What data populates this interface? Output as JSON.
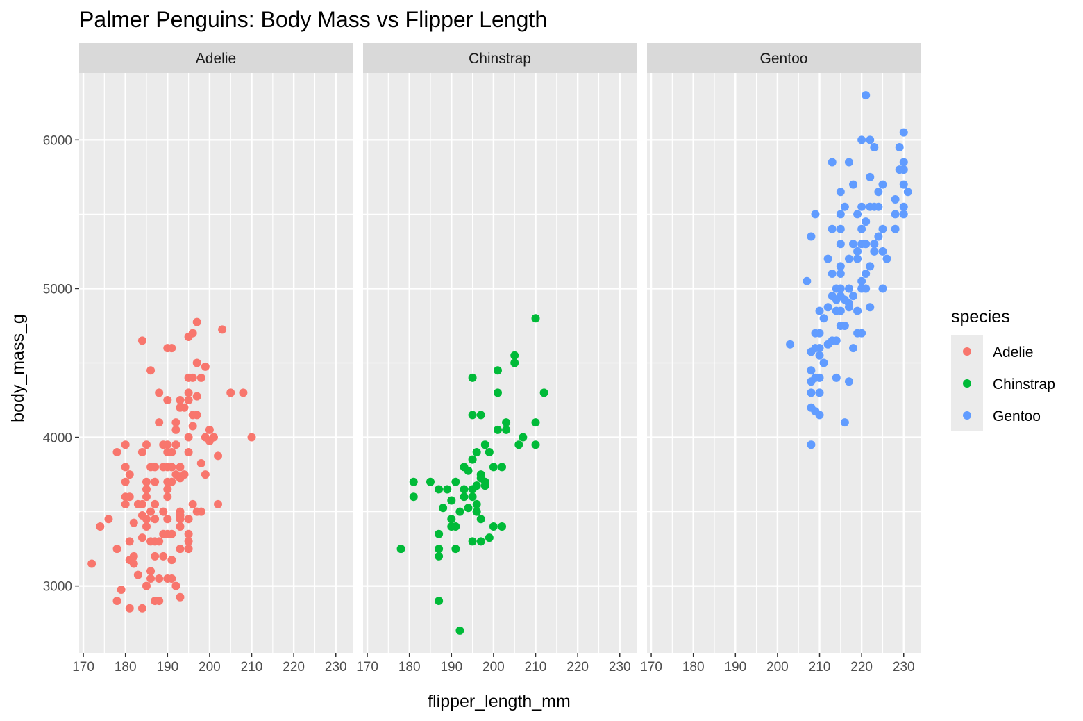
{
  "chart_data": {
    "type": "scatter",
    "title": "Palmer Penguins: Body Mass vs Flipper Length",
    "xlabel": "flipper_length_mm",
    "ylabel": "body_mass_g",
    "xlim": [
      169,
      234
    ],
    "ylim": [
      2550,
      6450
    ],
    "xticks": [
      170,
      180,
      190,
      200,
      210,
      220,
      230
    ],
    "yticks": [
      3000,
      4000,
      5000,
      6000
    ],
    "grid": true,
    "legend": {
      "title": "species",
      "position": "right"
    },
    "facets": [
      {
        "name": "Adelie",
        "color": "#F8766D",
        "points": [
          [
            172,
            3150
          ],
          [
            174,
            3400
          ],
          [
            176,
            3450
          ],
          [
            178,
            3900
          ],
          [
            178,
            3250
          ],
          [
            178,
            2900
          ],
          [
            179,
            2975
          ],
          [
            180,
            3950
          ],
          [
            180,
            3800
          ],
          [
            180,
            3700
          ],
          [
            180,
            3600
          ],
          [
            180,
            3550
          ],
          [
            181,
            3750
          ],
          [
            181,
            3600
          ],
          [
            181,
            3300
          ],
          [
            181,
            3175
          ],
          [
            181,
            2850
          ],
          [
            182,
            3150
          ],
          [
            182,
            3200
          ],
          [
            182,
            3425
          ],
          [
            183,
            3550
          ],
          [
            183,
            3075
          ],
          [
            184,
            4650
          ],
          [
            184,
            3900
          ],
          [
            184,
            3550
          ],
          [
            184,
            3475
          ],
          [
            184,
            3325
          ],
          [
            184,
            2850
          ],
          [
            185,
            3950
          ],
          [
            185,
            3700
          ],
          [
            185,
            3650
          ],
          [
            185,
            3600
          ],
          [
            185,
            3450
          ],
          [
            185,
            3400
          ],
          [
            185,
            3000
          ],
          [
            186,
            4450
          ],
          [
            186,
            3800
          ],
          [
            186,
            3500
          ],
          [
            186,
            3300
          ],
          [
            186,
            3100
          ],
          [
            186,
            3050
          ],
          [
            187,
            3800
          ],
          [
            187,
            3700
          ],
          [
            187,
            3550
          ],
          [
            187,
            3450
          ],
          [
            187,
            3300
          ],
          [
            187,
            3200
          ],
          [
            187,
            2900
          ],
          [
            188,
            4300
          ],
          [
            188,
            4100
          ],
          [
            188,
            3300
          ],
          [
            188,
            3050
          ],
          [
            188,
            2900
          ],
          [
            189,
            3950
          ],
          [
            189,
            3800
          ],
          [
            189,
            3500
          ],
          [
            189,
            3350
          ],
          [
            189,
            3200
          ],
          [
            190,
            4600
          ],
          [
            190,
            4250
          ],
          [
            190,
            3950
          ],
          [
            190,
            3900
          ],
          [
            190,
            3800
          ],
          [
            190,
            3700
          ],
          [
            190,
            3650
          ],
          [
            190,
            3600
          ],
          [
            190,
            3450
          ],
          [
            190,
            3350
          ],
          [
            190,
            3050
          ],
          [
            191,
            4600
          ],
          [
            191,
            3900
          ],
          [
            191,
            3800
          ],
          [
            191,
            3700
          ],
          [
            191,
            3350
          ],
          [
            191,
            3175
          ],
          [
            191,
            3050
          ],
          [
            192,
            4100
          ],
          [
            192,
            4050
          ],
          [
            192,
            3950
          ],
          [
            192,
            3750
          ],
          [
            192,
            3000
          ],
          [
            193,
            4250
          ],
          [
            193,
            4200
          ],
          [
            193,
            3800
          ],
          [
            193,
            3725
          ],
          [
            193,
            3500
          ],
          [
            193,
            3475
          ],
          [
            193,
            3450
          ],
          [
            193,
            3400
          ],
          [
            193,
            3250
          ],
          [
            193,
            2925
          ],
          [
            194,
            4200
          ],
          [
            194,
            3750
          ],
          [
            195,
            4675
          ],
          [
            195,
            4400
          ],
          [
            195,
            4300
          ],
          [
            195,
            4250
          ],
          [
            195,
            4000
          ],
          [
            195,
            3900
          ],
          [
            195,
            3450
          ],
          [
            195,
            3350
          ],
          [
            195,
            3300
          ],
          [
            195,
            3250
          ],
          [
            196,
            4700
          ],
          [
            196,
            4400
          ],
          [
            196,
            4150
          ],
          [
            196,
            4075
          ],
          [
            196,
            3550
          ],
          [
            197,
            4775
          ],
          [
            197,
            4500
          ],
          [
            197,
            4275
          ],
          [
            197,
            4150
          ],
          [
            197,
            3500
          ],
          [
            198,
            4400
          ],
          [
            198,
            3825
          ],
          [
            198,
            3500
          ],
          [
            199,
            4475
          ],
          [
            199,
            4000
          ],
          [
            199,
            3750
          ],
          [
            200,
            4050
          ],
          [
            200,
            3975
          ],
          [
            201,
            4000
          ],
          [
            202,
            3875
          ],
          [
            202,
            3550
          ],
          [
            203,
            4725
          ],
          [
            205,
            4300
          ],
          [
            208,
            4300
          ],
          [
            210,
            4000
          ]
        ]
      },
      {
        "name": "Chinstrap",
        "color": "#00BA38",
        "points": [
          [
            178,
            3250
          ],
          [
            181,
            3700
          ],
          [
            181,
            3600
          ],
          [
            185,
            3700
          ],
          [
            187,
            3650
          ],
          [
            187,
            3350
          ],
          [
            187,
            3250
          ],
          [
            187,
            3200
          ],
          [
            187,
            2900
          ],
          [
            188,
            3525
          ],
          [
            189,
            3650
          ],
          [
            190,
            3575
          ],
          [
            190,
            3450
          ],
          [
            190,
            3400
          ],
          [
            191,
            3700
          ],
          [
            191,
            3400
          ],
          [
            191,
            3250
          ],
          [
            192,
            3500
          ],
          [
            192,
            2700
          ],
          [
            193,
            3800
          ],
          [
            193,
            3650
          ],
          [
            193,
            3600
          ],
          [
            194,
            3775
          ],
          [
            194,
            3525
          ],
          [
            195,
            4400
          ],
          [
            195,
            4150
          ],
          [
            195,
            3850
          ],
          [
            195,
            3650
          ],
          [
            195,
            3600
          ],
          [
            195,
            3300
          ],
          [
            196,
            3900
          ],
          [
            196,
            3675
          ],
          [
            196,
            3550
          ],
          [
            196,
            3500
          ],
          [
            197,
            4150
          ],
          [
            197,
            3750
          ],
          [
            197,
            3725
          ],
          [
            197,
            3450
          ],
          [
            197,
            3300
          ],
          [
            198,
            3950
          ],
          [
            198,
            3700
          ],
          [
            198,
            3675
          ],
          [
            199,
            3900
          ],
          [
            199,
            3325
          ],
          [
            200,
            3800
          ],
          [
            200,
            3400
          ],
          [
            201,
            4450
          ],
          [
            201,
            4300
          ],
          [
            201,
            4050
          ],
          [
            202,
            3800
          ],
          [
            202,
            3400
          ],
          [
            203,
            4100
          ],
          [
            203,
            4050
          ],
          [
            205,
            4550
          ],
          [
            205,
            4500
          ],
          [
            206,
            3950
          ],
          [
            207,
            4000
          ],
          [
            210,
            4800
          ],
          [
            210,
            4100
          ],
          [
            210,
            3950
          ],
          [
            212,
            4300
          ]
        ]
      },
      {
        "name": "Gentoo",
        "color": "#619CFF",
        "points": [
          [
            203,
            4625
          ],
          [
            207,
            5050
          ],
          [
            208,
            5350
          ],
          [
            208,
            4575
          ],
          [
            208,
            4450
          ],
          [
            208,
            4375
          ],
          [
            208,
            4300
          ],
          [
            208,
            4200
          ],
          [
            208,
            3950
          ],
          [
            209,
            5500
          ],
          [
            209,
            4700
          ],
          [
            209,
            4600
          ],
          [
            209,
            4400
          ],
          [
            209,
            4175
          ],
          [
            210,
            4850
          ],
          [
            210,
            4700
          ],
          [
            210,
            4600
          ],
          [
            210,
            4550
          ],
          [
            210,
            4400
          ],
          [
            210,
            4300
          ],
          [
            210,
            4150
          ],
          [
            211,
            4800
          ],
          [
            211,
            4500
          ],
          [
            212,
            5200
          ],
          [
            212,
            4875
          ],
          [
            212,
            4625
          ],
          [
            213,
            5850
          ],
          [
            213,
            5400
          ],
          [
            213,
            5100
          ],
          [
            213,
            4950
          ],
          [
            213,
            4650
          ],
          [
            214,
            5000
          ],
          [
            214,
            4925
          ],
          [
            214,
            4850
          ],
          [
            214,
            4650
          ],
          [
            214,
            4400
          ],
          [
            215,
            5650
          ],
          [
            215,
            5500
          ],
          [
            215,
            5400
          ],
          [
            215,
            5300
          ],
          [
            215,
            5150
          ],
          [
            215,
            5100
          ],
          [
            215,
            5000
          ],
          [
            215,
            4950
          ],
          [
            215,
            4850
          ],
          [
            215,
            4750
          ],
          [
            216,
            5550
          ],
          [
            216,
            4925
          ],
          [
            216,
            4750
          ],
          [
            216,
            4100
          ],
          [
            217,
            5850
          ],
          [
            217,
            5200
          ],
          [
            217,
            5000
          ],
          [
            217,
            4900
          ],
          [
            217,
            4875
          ],
          [
            217,
            4375
          ],
          [
            218,
            5700
          ],
          [
            218,
            5300
          ],
          [
            218,
            4950
          ],
          [
            218,
            4600
          ],
          [
            219,
            5500
          ],
          [
            219,
            5250
          ],
          [
            219,
            5200
          ],
          [
            219,
            4850
          ],
          [
            219,
            4700
          ],
          [
            220,
            6000
          ],
          [
            220,
            5550
          ],
          [
            220,
            5400
          ],
          [
            220,
            5300
          ],
          [
            220,
            5050
          ],
          [
            220,
            5000
          ],
          [
            220,
            4700
          ],
          [
            221,
            6300
          ],
          [
            221,
            5450
          ],
          [
            221,
            5300
          ],
          [
            221,
            5100
          ],
          [
            221,
            5000
          ],
          [
            222,
            6000
          ],
          [
            222,
            5750
          ],
          [
            222,
            5550
          ],
          [
            222,
            5150
          ],
          [
            222,
            4875
          ],
          [
            223,
            5950
          ],
          [
            223,
            5550
          ],
          [
            223,
            5300
          ],
          [
            223,
            5250
          ],
          [
            224,
            5650
          ],
          [
            224,
            5550
          ],
          [
            224,
            5350
          ],
          [
            225,
            5700
          ],
          [
            225,
            5400
          ],
          [
            225,
            5250
          ],
          [
            225,
            5000
          ],
          [
            226,
            5200
          ],
          [
            228,
            5600
          ],
          [
            228,
            5500
          ],
          [
            228,
            5400
          ],
          [
            229,
            5950
          ],
          [
            229,
            5800
          ],
          [
            230,
            6050
          ],
          [
            230,
            5850
          ],
          [
            230,
            5800
          ],
          [
            230,
            5700
          ],
          [
            230,
            5550
          ],
          [
            230,
            5500
          ],
          [
            231,
            5650
          ]
        ]
      }
    ]
  }
}
